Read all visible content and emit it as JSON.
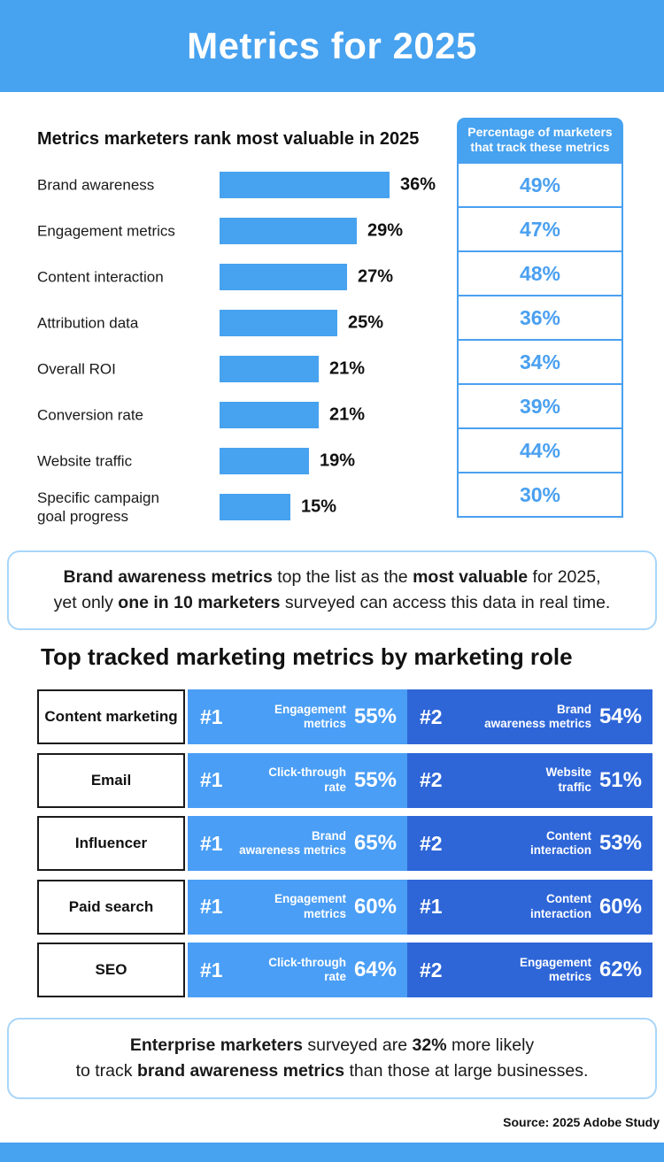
{
  "header": {
    "title": "Metrics for 2025"
  },
  "colors": {
    "primary_blue": "#47a2ef",
    "table_light_blue": "#4a9ef5",
    "table_dark_blue": "#2e66d8",
    "callout_border": "#a9d6f9",
    "pct_text_blue": "#4aa0f0"
  },
  "chart_data": [
    {
      "type": "bar",
      "title": "Metrics marketers rank most valuable in 2025",
      "categories": [
        "Brand awareness",
        "Engagement metrics",
        "Content interaction",
        "Attribution data",
        "Overall ROI",
        "Conversion rate",
        "Website traffic",
        "Specific campaign goal progress"
      ],
      "values": [
        36,
        29,
        27,
        25,
        21,
        21,
        19,
        15
      ],
      "labels": [
        "36%",
        "29%",
        "27%",
        "25%",
        "21%",
        "21%",
        "19%",
        "15%"
      ],
      "xlim": [
        0,
        40
      ],
      "orientation": "horizontal",
      "bar_color": "#47a2ef",
      "tracked": {
        "header": "Percentage of marketers that track these metrics",
        "values": [
          "49%",
          "47%",
          "48%",
          "36%",
          "34%",
          "39%",
          "44%",
          "30%"
        ]
      }
    },
    {
      "type": "table",
      "title": "Top tracked marketing metrics by marketing role",
      "rows": [
        {
          "role": "Content marketing",
          "first": {
            "rank": "#1",
            "metric": "Engagement\nmetrics",
            "pct": "55%"
          },
          "second": {
            "rank": "#2",
            "metric": "Brand\nawareness metrics",
            "pct": "54%"
          }
        },
        {
          "role": "Email",
          "first": {
            "rank": "#1",
            "metric": "Click-through\nrate",
            "pct": "55%"
          },
          "second": {
            "rank": "#2",
            "metric": "Website\ntraffic",
            "pct": "51%"
          }
        },
        {
          "role": "Influencer",
          "first": {
            "rank": "#1",
            "metric": "Brand\nawareness metrics",
            "pct": "65%"
          },
          "second": {
            "rank": "#2",
            "metric": "Content\ninteraction",
            "pct": "53%"
          }
        },
        {
          "role": "Paid search",
          "first": {
            "rank": "#1",
            "metric": "Engagement\nmetrics",
            "pct": "60%"
          },
          "second": {
            "rank": "#1",
            "metric": "Content\ninteraction",
            "pct": "60%"
          }
        },
        {
          "role": "SEO",
          "first": {
            "rank": "#1",
            "metric": "Click-through\nrate",
            "pct": "64%"
          },
          "second": {
            "rank": "#2",
            "metric": "Engagement\nmetrics",
            "pct": "62%"
          }
        }
      ]
    }
  ],
  "callouts": {
    "brand": {
      "lines": [
        [
          {
            "t": "Brand awareness metrics",
            "b": true
          },
          {
            "t": " top the list as the ",
            "b": false
          },
          {
            "t": "most valuable",
            "b": true
          },
          {
            "t": " for 2025,",
            "b": false
          }
        ],
        [
          {
            "t": "yet only ",
            "b": false
          },
          {
            "t": "one in 10 marketers",
            "b": true
          },
          {
            "t": " surveyed can access this data in real time.",
            "b": false
          }
        ]
      ]
    },
    "enterprise": {
      "lines": [
        [
          {
            "t": "Enterprise marketers",
            "b": true
          },
          {
            "t": " surveyed are ",
            "b": false
          },
          {
            "t": "32%",
            "b": true
          },
          {
            "t": " more likely",
            "b": false
          }
        ],
        [
          {
            "t": "to track ",
            "b": false
          },
          {
            "t": "brand awareness metrics",
            "b": true
          },
          {
            "t": " than those at large businesses.",
            "b": false
          }
        ]
      ]
    }
  },
  "footer": {
    "source": "Source: 2025 Adobe Study"
  }
}
